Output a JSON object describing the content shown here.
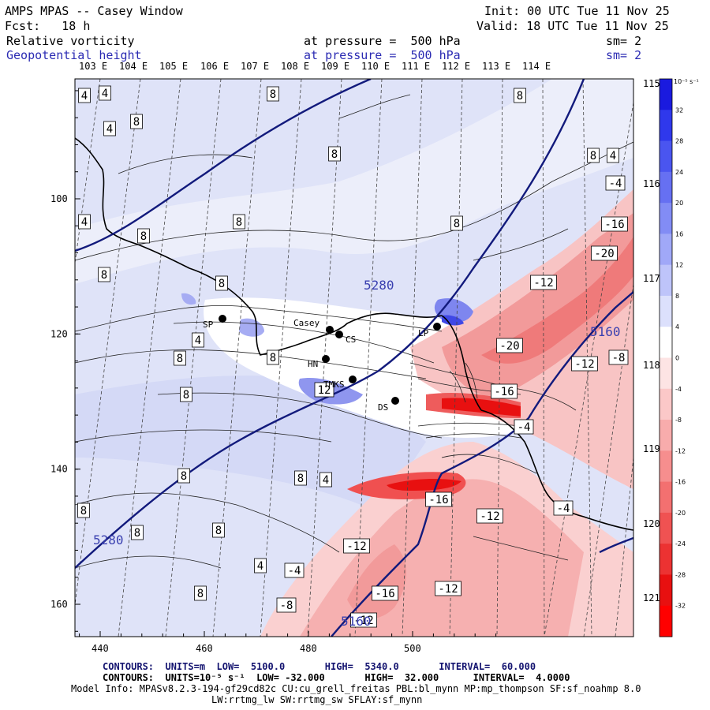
{
  "header": {
    "title": "AMPS MPAS -- Casey Window",
    "init": "Init: 00 UTC Tue 11 Nov 25",
    "fcst": "Fcst:   18 h",
    "valid": "Valid: 18 UTC Tue 11 Nov 25",
    "field1": "Relative vorticity",
    "field1_level": "at pressure =  500 hPa",
    "field1_sm": "sm= 2",
    "field2": "Geopotential height",
    "field2_level": "at pressure =  500 hPa",
    "field2_sm": "sm= 2"
  },
  "footer": {
    "contours1": "CONTOURS:  UNITS=m  LOW=  5100.0       HIGH=  5340.0       INTERVAL=  60.000",
    "contours2": "CONTOURS:  UNITS=10⁻⁵ s⁻¹  LOW= -32.000       HIGH=  32.000      INTERVAL=  4.0000",
    "model_info": "Model Info: MPASv8.2.3-194-gf29cd82c CU:cu_grell_freitas PBL:bl_mynn MP:mp_thompson SF:sf_noahmp 8.0",
    "model_info2": "LW:rrtmg_lw SW:rrtmg_sw SFLAY:sf_mynn"
  },
  "colorbar_unit": "10⁻⁵ s⁻¹",
  "chart_data": {
    "type": "heatmap",
    "variable": "Relative vorticity (shaded, sm=2) and geopotential height (contours) at 500 hPa",
    "x_ticks": [
      440,
      460,
      480,
      500
    ],
    "y_ticks": [
      100,
      120,
      140,
      160
    ],
    "top_lon_labels": [
      "103 E",
      "104 E",
      "105 E",
      "106 E",
      "107 E",
      "108 E",
      "109 E",
      "110 E",
      "111 E",
      "112 E",
      "113 E",
      "114 E"
    ],
    "right_lon_labels": [
      "115 E",
      "116 E",
      "117 E",
      "118 E",
      "119 E",
      "120 E",
      "121 E"
    ],
    "colorbar_ticks": [
      32,
      28,
      24,
      20,
      16,
      12,
      8,
      4,
      0,
      -4,
      -8,
      -12,
      -16,
      -20,
      -24,
      -28,
      -32
    ],
    "colorbar_colors": [
      "#1a1adf",
      "#2f38ec",
      "#4a55f0",
      "#6670f2",
      "#828cf5",
      "#a0a8f8",
      "#bec4fa",
      "#dce0fc",
      "#ffffff",
      "#fde4e4",
      "#fbc8c8",
      "#f8acac",
      "#f68e8e",
      "#f37070",
      "#f05252",
      "#ec3232",
      "#e81010",
      "#ff0000"
    ],
    "height_contours": [
      {
        "value": 5280,
        "label": "5280"
      },
      {
        "value": 5160,
        "label": "5160"
      }
    ],
    "stations": [
      {
        "name": "SP"
      },
      {
        "name": "Casey"
      },
      {
        "name": "CS"
      },
      {
        "name": "LP"
      },
      {
        "name": "HN"
      },
      {
        "name": "TMKS"
      },
      {
        "name": "DS"
      }
    ],
    "vorticity_labels": [
      {
        "v": "4",
        "x": 107,
        "y": 121
      },
      {
        "v": "4",
        "x": 133,
        "y": 118
      },
      {
        "v": "4",
        "x": 139,
        "y": 163
      },
      {
        "v": "8",
        "x": 173,
        "y": 154
      },
      {
        "v": "8",
        "x": 346,
        "y": 119
      },
      {
        "v": "8",
        "x": 659,
        "y": 121
      },
      {
        "v": "8",
        "x": 424,
        "y": 195
      },
      {
        "v": "8",
        "x": 752,
        "y": 197
      },
      {
        "v": "4",
        "x": 777,
        "y": 197
      },
      {
        "v": "4",
        "x": 107,
        "y": 281
      },
      {
        "v": "8",
        "x": 182,
        "y": 299
      },
      {
        "v": "8",
        "x": 303,
        "y": 281
      },
      {
        "v": "8",
        "x": 579,
        "y": 283
      },
      {
        "v": "8",
        "x": 132,
        "y": 348
      },
      {
        "v": "8",
        "x": 281,
        "y": 359
      },
      {
        "v": "4",
        "x": 251,
        "y": 431
      },
      {
        "v": "8",
        "x": 228,
        "y": 454
      },
      {
        "v": "8",
        "x": 346,
        "y": 453
      },
      {
        "v": "12",
        "x": 411,
        "y": 494
      },
      {
        "v": "8",
        "x": 236,
        "y": 500
      },
      {
        "v": "8",
        "x": 233,
        "y": 603
      },
      {
        "v": "8",
        "x": 381,
        "y": 606
      },
      {
        "v": "4",
        "x": 413,
        "y": 608
      },
      {
        "v": "8",
        "x": 106,
        "y": 647
      },
      {
        "v": "8",
        "x": 174,
        "y": 675
      },
      {
        "v": "8",
        "x": 277,
        "y": 672
      },
      {
        "v": "4",
        "x": 330,
        "y": 717
      },
      {
        "v": "-4",
        "x": 373,
        "y": 723
      },
      {
        "v": "8",
        "x": 254,
        "y": 752
      },
      {
        "v": "-8",
        "x": 363,
        "y": 767
      },
      {
        "v": "-4",
        "x": 780,
        "y": 232
      },
      {
        "v": "-16",
        "x": 779,
        "y": 284
      },
      {
        "v": "-20",
        "x": 766,
        "y": 321
      },
      {
        "v": "-12",
        "x": 689,
        "y": 358
      },
      {
        "v": "-20",
        "x": 646,
        "y": 438
      },
      {
        "v": "-12",
        "x": 741,
        "y": 461
      },
      {
        "v": "-8",
        "x": 784,
        "y": 453
      },
      {
        "v": "-16",
        "x": 639,
        "y": 496
      },
      {
        "v": "-4",
        "x": 664,
        "y": 541
      },
      {
        "v": "-16",
        "x": 556,
        "y": 633
      },
      {
        "v": "-12",
        "x": 621,
        "y": 654
      },
      {
        "v": "-4",
        "x": 714,
        "y": 644
      },
      {
        "v": "-12",
        "x": 452,
        "y": 692
      },
      {
        "v": "-16",
        "x": 488,
        "y": 752
      },
      {
        "v": "-12",
        "x": 568,
        "y": 746
      },
      {
        "v": "-12",
        "x": 461,
        "y": 786
      }
    ]
  }
}
